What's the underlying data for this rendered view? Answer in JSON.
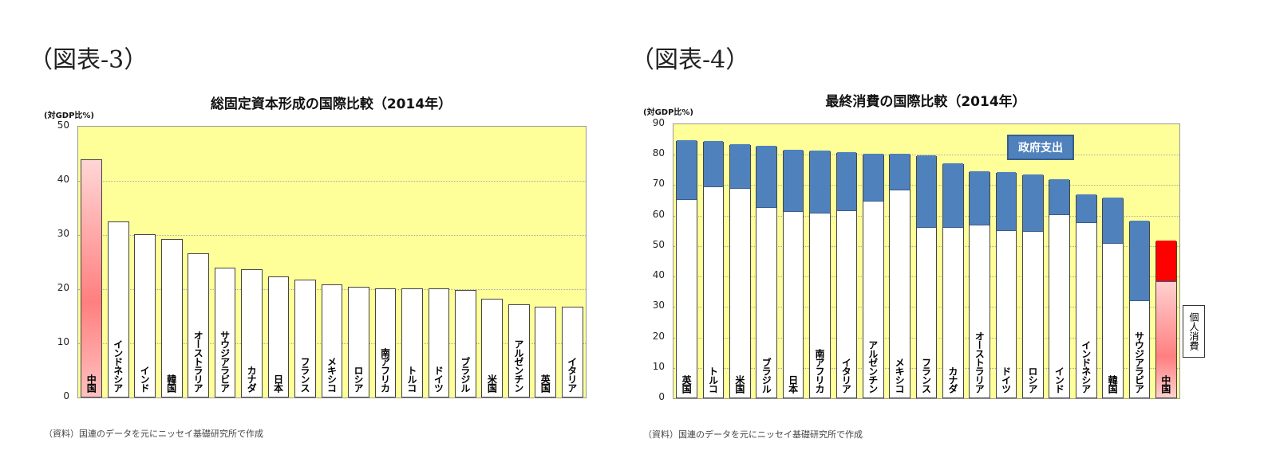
{
  "figures": [
    {
      "label": "（図表-3）"
    },
    {
      "label": "（図表-4）"
    }
  ],
  "source": "（資料）国連のデータを元にニッセイ基礎研究所で作成",
  "chart_data": [
    {
      "type": "bar",
      "title": "総固定資本形成の国際比較（2014年）",
      "ylabel": "(対GDP比%)",
      "ylim": [
        0,
        50
      ],
      "yticks": [
        0,
        10,
        20,
        30,
        40,
        50
      ],
      "grid": true,
      "background": "#ffff99",
      "categories": [
        "中国",
        "インドネシア",
        "インド",
        "韓国",
        "オーストラリア",
        "サウジアラビア",
        "カナダ",
        "日本",
        "フランス",
        "メキシコ",
        "ロシア",
        "南アフリカ",
        "トルコ",
        "ドイツ",
        "ブラジル",
        "米国",
        "アルゼンチン",
        "英国",
        "イタリア"
      ],
      "values": [
        44.0,
        32.5,
        30.2,
        29.3,
        26.6,
        24.0,
        23.7,
        22.3,
        21.8,
        20.9,
        20.5,
        20.2,
        20.2,
        20.1,
        19.8,
        18.3,
        17.2,
        16.8,
        16.7
      ],
      "highlight": {
        "category": "中国",
        "color": "#ff7f7f"
      }
    },
    {
      "type": "bar",
      "stacked": true,
      "title": "最終消費の国際比較（2014年）",
      "ylabel": "(対GDP比%)",
      "ylim": [
        0,
        90
      ],
      "yticks": [
        0,
        10,
        20,
        30,
        40,
        50,
        60,
        70,
        80,
        90
      ],
      "grid": true,
      "background": "#ffff99",
      "categories": [
        "英国",
        "トルコ",
        "米国",
        "ブラジル",
        "日本",
        "南アフリカ",
        "イタリア",
        "アルゼンチン",
        "メキシコ",
        "フランス",
        "カナダ",
        "オーストラリア",
        "ドイツ",
        "ロシア",
        "インド",
        "インドネシア",
        "韓国",
        "サウジアラビア",
        "中国"
      ],
      "series": [
        {
          "name": "個人消費",
          "color": "#ffffff",
          "values": [
            65.0,
            69.0,
            68.5,
            62.3,
            61.0,
            60.5,
            61.3,
            64.3,
            68.0,
            55.7,
            55.8,
            56.5,
            54.8,
            54.5,
            60.0,
            57.3,
            50.5,
            31.7,
            38.0
          ]
        },
        {
          "name": "政府支出",
          "color": "#4f81bd",
          "values": [
            19.5,
            15.3,
            14.7,
            20.5,
            20.3,
            20.5,
            19.3,
            15.8,
            12.1,
            23.9,
            21.1,
            17.7,
            19.3,
            18.7,
            11.6,
            9.5,
            15.1,
            26.3,
            13.5
          ]
        }
      ],
      "highlight": {
        "category": "中国",
        "colors": [
          "#ff9999",
          "#ff0000"
        ]
      },
      "annotations": [
        "政府支出",
        "個人消費"
      ]
    }
  ]
}
